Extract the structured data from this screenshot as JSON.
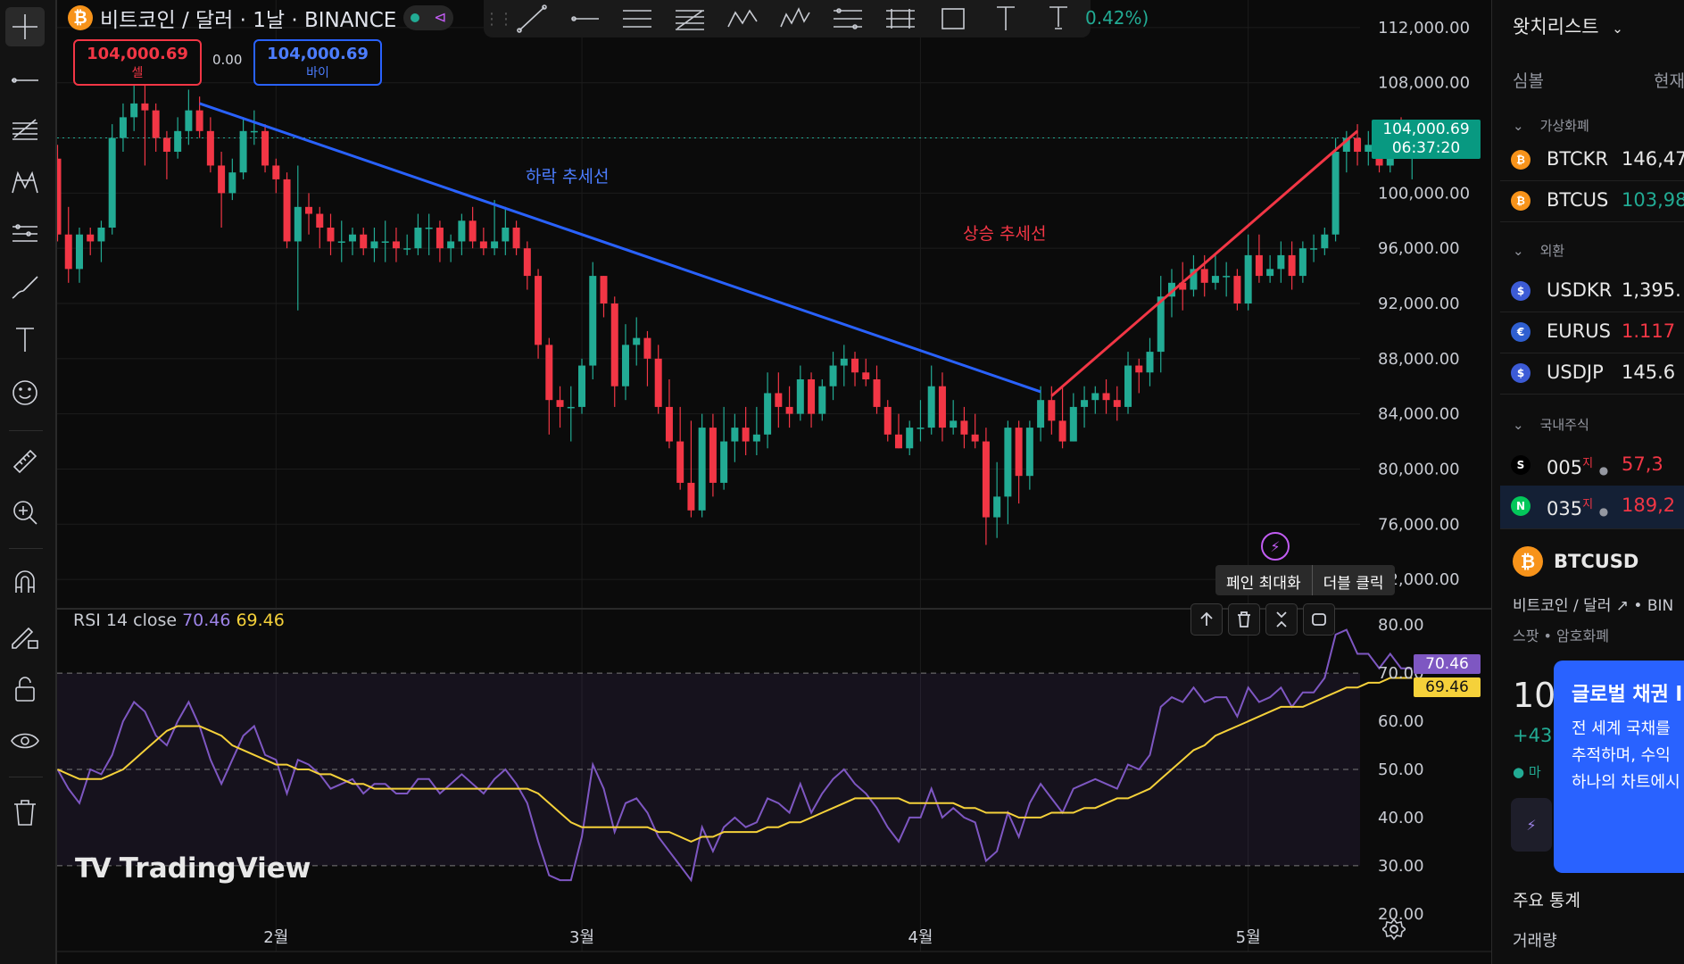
{
  "header": {
    "symbol_title": "비트코인 / 달러 · 1날 · BINANCE",
    "change_text": "0.42%)",
    "sell": {
      "price": "104,000.69",
      "label": "셀"
    },
    "buy": {
      "price": "104,000.69",
      "label": "바이"
    },
    "spread": "0.00"
  },
  "price_axis": {
    "labels": [
      "112,000.00",
      "108,000.00",
      "104,000.00",
      "100,000.00",
      "96,000.00",
      "92,000.00",
      "88,000.00",
      "84,000.00",
      "80,000.00",
      "76,000.00",
      "72,000.00"
    ],
    "last_price": "104,000.69",
    "countdown": "06:37:20"
  },
  "time_axis": [
    "2월",
    "3월",
    "4월",
    "5월"
  ],
  "annotations": {
    "downtrend": "하락 추세선",
    "uptrend": "상승 추세선"
  },
  "rsi": {
    "legend_label": "RSI 14 close",
    "rsi_value": "70.46",
    "ma_value": "69.46",
    "axis_labels": [
      "80.00",
      "70.00",
      "60.00",
      "50.00",
      "40.00",
      "30.00",
      "20.00"
    ]
  },
  "pane_tooltip": {
    "action": "페인 최대화",
    "hint": "더블 클릭"
  },
  "branding": {
    "logo_text": "TradingView"
  },
  "chart_data": {
    "type": "candlestick",
    "x": [
      "2025-01-12",
      "2025-01-13",
      "2025-01-14",
      "2025-01-15",
      "2025-01-16",
      "2025-01-17",
      "2025-01-18",
      "2025-01-19",
      "2025-01-20",
      "2025-01-21",
      "2025-01-22",
      "2025-01-23",
      "2025-01-24",
      "2025-01-25",
      "2025-01-26",
      "2025-01-27",
      "2025-01-28",
      "2025-01-29",
      "2025-01-30",
      "2025-01-31",
      "2025-02-01",
      "2025-02-02",
      "2025-02-03",
      "2025-02-04",
      "2025-02-05",
      "2025-02-06",
      "2025-02-07",
      "2025-02-08",
      "2025-02-09",
      "2025-02-10",
      "2025-02-11",
      "2025-02-12",
      "2025-02-13",
      "2025-02-14",
      "2025-02-15",
      "2025-02-16",
      "2025-02-17",
      "2025-02-18",
      "2025-02-19",
      "2025-02-20",
      "2025-02-21",
      "2025-02-22",
      "2025-02-23",
      "2025-02-24",
      "2025-02-25",
      "2025-02-26",
      "2025-02-27",
      "2025-02-28",
      "2025-03-01",
      "2025-03-02",
      "2025-03-03",
      "2025-03-04",
      "2025-03-05",
      "2025-03-06",
      "2025-03-07",
      "2025-03-08",
      "2025-03-09",
      "2025-03-10",
      "2025-03-11",
      "2025-03-12",
      "2025-03-13",
      "2025-03-14",
      "2025-03-15",
      "2025-03-16",
      "2025-03-17",
      "2025-03-18",
      "2025-03-19",
      "2025-03-20",
      "2025-03-21",
      "2025-03-22",
      "2025-03-23",
      "2025-03-24",
      "2025-03-25",
      "2025-03-26",
      "2025-03-27",
      "2025-03-28",
      "2025-03-29",
      "2025-03-30",
      "2025-03-31",
      "2025-04-01",
      "2025-04-02",
      "2025-04-03",
      "2025-04-04",
      "2025-04-05",
      "2025-04-06",
      "2025-04-07",
      "2025-04-08",
      "2025-04-09",
      "2025-04-10",
      "2025-04-11",
      "2025-04-12",
      "2025-04-13",
      "2025-04-14",
      "2025-04-15",
      "2025-04-16",
      "2025-04-17",
      "2025-04-18",
      "2025-04-19",
      "2025-04-20",
      "2025-04-21",
      "2025-04-22",
      "2025-04-23",
      "2025-04-24",
      "2025-04-25",
      "2025-04-26",
      "2025-04-27",
      "2025-04-28",
      "2025-04-29",
      "2025-04-30",
      "2025-05-01",
      "2025-05-02",
      "2025-05-03",
      "2025-05-04",
      "2025-05-05",
      "2025-05-06",
      "2025-05-07",
      "2025-05-08",
      "2025-05-09",
      "2025-05-10",
      "2025-05-11",
      "2025-05-12",
      "2025-05-13",
      "2025-05-14",
      "2025-05-15",
      "2025-05-16"
    ],
    "open": [
      102500,
      97000,
      94500,
      97000,
      96500,
      97500,
      104000,
      105500,
      106500,
      106000,
      104000,
      103000,
      104500,
      106000,
      104500,
      102000,
      100000,
      101500,
      104500,
      104500,
      102000,
      101000,
      96500,
      99000,
      98500,
      97500,
      96500,
      96500,
      97000,
      96000,
      96500,
      96500,
      96000,
      96000,
      97500,
      97500,
      96000,
      96500,
      98000,
      96500,
      96000,
      96500,
      97500,
      96000,
      94000,
      89000,
      85000,
      84500,
      84500,
      87500,
      94000,
      92000,
      86000,
      89000,
      89500,
      88000,
      84500,
      82000,
      79000,
      77000,
      83000,
      79000,
      82000,
      83000,
      82000,
      82500,
      85500,
      84500,
      84000,
      86500,
      84000,
      86000,
      87500,
      88000,
      87000,
      86500,
      84500,
      82500,
      81500,
      83000,
      83000,
      86000,
      83000,
      83500,
      82500,
      82000,
      76500,
      78000,
      83000,
      79500,
      83000,
      85000,
      83500,
      82000,
      84500,
      85000,
      85500,
      85000,
      84500,
      87500,
      87000,
      88500,
      92500,
      93500,
      93000,
      94500,
      93500,
      94000,
      94000,
      92000,
      95500,
      94000,
      94500,
      95500,
      94000,
      96000,
      96000,
      97000,
      103000,
      104000,
      103000,
      103500,
      102000,
      104000,
      103500
    ],
    "close": [
      97000,
      94500,
      97000,
      96500,
      97500,
      104000,
      105500,
      106500,
      106000,
      104000,
      103000,
      104500,
      106000,
      104500,
      102000,
      100000,
      101500,
      104500,
      104500,
      102000,
      101000,
      96500,
      99000,
      98500,
      97500,
      96500,
      96500,
      97000,
      96000,
      96500,
      96500,
      96000,
      96000,
      97500,
      97500,
      96000,
      96500,
      98000,
      96500,
      96000,
      96500,
      97500,
      96000,
      94000,
      89000,
      85000,
      84500,
      84500,
      87500,
      94000,
      92000,
      86000,
      89000,
      89500,
      88000,
      84500,
      82000,
      79000,
      77000,
      83000,
      79000,
      82000,
      83000,
      82000,
      82500,
      85500,
      84500,
      84000,
      86500,
      84000,
      86000,
      87500,
      88000,
      87000,
      86500,
      84500,
      82500,
      81500,
      83000,
      83000,
      86000,
      83000,
      83500,
      82500,
      82000,
      76500,
      78000,
      83000,
      79500,
      83000,
      85000,
      83500,
      82000,
      84500,
      85000,
      85500,
      85000,
      84500,
      87500,
      87000,
      88500,
      92500,
      93500,
      93000,
      94500,
      93500,
      94000,
      94000,
      92000,
      95500,
      94000,
      94500,
      95500,
      94000,
      96000,
      96000,
      97000,
      103000,
      104000,
      103000,
      103500,
      102000,
      104000,
      103500,
      104000
    ],
    "high": [
      103500,
      99000,
      97500,
      97500,
      98000,
      105000,
      106500,
      108500,
      109500,
      106500,
      104500,
      105500,
      107500,
      107000,
      105500,
      103000,
      102500,
      105500,
      106000,
      105000,
      102500,
      101500,
      102000,
      100000,
      99000,
      98500,
      98000,
      97500,
      97500,
      97500,
      98000,
      97500,
      97000,
      98500,
      98500,
      98000,
      97000,
      98500,
      99000,
      97500,
      99500,
      99000,
      98000,
      96500,
      94500,
      89500,
      86000,
      86000,
      88000,
      95000,
      94000,
      92500,
      90500,
      91000,
      90000,
      89000,
      86500,
      84500,
      83500,
      84000,
      84000,
      84500,
      84000,
      84500,
      84500,
      87000,
      87000,
      86000,
      87500,
      87000,
      86500,
      88500,
      89000,
      88500,
      88000,
      87500,
      85000,
      84000,
      83500,
      85000,
      87500,
      87000,
      85000,
      84500,
      84000,
      83000,
      80500,
      83500,
      83500,
      83500,
      86000,
      86000,
      86000,
      85500,
      86000,
      86000,
      86500,
      86000,
      88500,
      88000,
      89500,
      94000,
      94500,
      95000,
      95500,
      95500,
      95500,
      95000,
      94500,
      97000,
      97000,
      95500,
      96500,
      96500,
      96500,
      97000,
      97500,
      104000,
      104500,
      105000,
      104500,
      105000,
      104500,
      105500,
      104500
    ],
    "low": [
      96500,
      93500,
      93500,
      95500,
      95000,
      97000,
      103000,
      104500,
      102000,
      103000,
      101000,
      102500,
      103500,
      104000,
      101500,
      97500,
      99500,
      101000,
      103500,
      101500,
      100000,
      96000,
      91500,
      97000,
      96000,
      95500,
      95000,
      95500,
      95500,
      95000,
      95000,
      95000,
      95500,
      95500,
      95500,
      95000,
      95000,
      95500,
      96000,
      95500,
      95500,
      95500,
      95500,
      93000,
      88000,
      82500,
      83000,
      82000,
      84000,
      86500,
      91000,
      84500,
      85000,
      87500,
      86000,
      84000,
      81500,
      78500,
      76500,
      76500,
      78000,
      78500,
      80500,
      81000,
      81000,
      81500,
      83000,
      83000,
      83500,
      83000,
      83500,
      85000,
      86000,
      86000,
      86000,
      84000,
      82000,
      81500,
      81000,
      82000,
      82500,
      82000,
      82500,
      81500,
      81500,
      74500,
      75000,
      76000,
      77500,
      78500,
      82000,
      82500,
      81500,
      82000,
      83000,
      84000,
      84000,
      83500,
      84000,
      85500,
      86000,
      87000,
      91000,
      91500,
      92500,
      92500,
      93000,
      92500,
      91500,
      91500,
      93500,
      93500,
      93500,
      93000,
      93500,
      95000,
      95500,
      96500,
      101500,
      102000,
      102000,
      101500,
      101500,
      102500,
      101000
    ],
    "rsi": [
      50,
      46,
      43,
      50,
      49,
      53,
      60,
      64,
      62,
      57,
      55,
      60,
      64,
      59,
      52,
      47,
      52,
      57,
      59,
      53,
      52,
      45,
      52,
      51,
      49,
      46,
      47,
      48,
      45,
      47,
      47,
      45,
      45,
      48,
      48,
      45,
      47,
      49,
      47,
      45,
      48,
      50,
      47,
      43,
      35,
      28,
      27,
      27,
      36,
      51,
      46,
      37,
      43,
      44,
      41,
      36,
      33,
      30,
      27,
      38,
      33,
      38,
      40,
      38,
      39,
      44,
      43,
      41,
      47,
      41,
      45,
      48,
      50,
      47,
      45,
      42,
      38,
      35,
      40,
      40,
      46,
      40,
      42,
      40,
      39,
      31,
      33,
      41,
      36,
      43,
      47,
      44,
      41,
      46,
      47,
      48,
      47,
      46,
      51,
      50,
      53,
      63,
      65,
      64,
      67,
      64,
      65,
      65,
      61,
      67,
      64,
      65,
      67,
      63,
      66,
      66,
      69,
      78,
      79,
      74,
      74,
      71,
      74,
      71,
      71
    ],
    "rsi_ma": [
      50,
      49,
      48,
      48,
      48,
      49,
      50,
      52,
      54,
      56,
      58,
      59,
      59,
      59,
      58,
      57,
      55,
      54,
      53,
      52,
      51,
      51,
      50,
      50,
      49,
      49,
      48,
      47,
      47,
      46,
      46,
      46,
      46,
      46,
      46,
      46,
      46,
      46,
      46,
      46,
      46,
      46,
      46,
      46,
      45,
      43,
      41,
      39,
      38,
      38,
      38,
      38,
      38,
      38,
      38,
      37,
      37,
      36,
      35,
      36,
      36,
      37,
      37,
      37,
      37,
      38,
      38,
      39,
      39,
      40,
      41,
      42,
      43,
      44,
      44,
      44,
      44,
      44,
      43,
      43,
      43,
      43,
      43,
      42,
      42,
      41,
      41,
      41,
      40,
      40,
      40,
      41,
      41,
      41,
      42,
      42,
      43,
      44,
      44,
      45,
      46,
      48,
      50,
      52,
      54,
      55,
      57,
      58,
      59,
      60,
      61,
      62,
      63,
      63,
      63,
      64,
      65,
      66,
      67,
      67,
      68,
      68,
      69,
      69,
      69
    ],
    "downtrend_line": {
      "start": [
        "2025-01-25",
        106500
      ],
      "end": [
        "2025-04-12",
        85600
      ]
    },
    "uptrend_line": {
      "start": [
        "2025-04-13",
        85300
      ],
      "end": [
        "2025-05-11",
        104500
      ]
    },
    "y_range": [
      70000,
      114000
    ],
    "rsi_range": [
      17,
      83
    ],
    "rsi_bands": [
      70,
      50,
      30
    ],
    "colors": {
      "up": "#22ab94",
      "down": "#f23645",
      "rsi": "#7e57c2",
      "rsi_ma": "#f5d13a",
      "down_trend": "#2962ff",
      "up_trend": "#f23645"
    }
  },
  "watchlist": {
    "title": "왓치리스트",
    "col_symbol": "심볼",
    "col_price": "현재",
    "groups": [
      {
        "name": "가상화폐",
        "rows": [
          {
            "symbol": "BTCKR",
            "value": "146,47",
            "value_color": "#e8e8e8",
            "icon": "bitcoin-icon",
            "icon_color": "#f7931a",
            "icon_glyph": "₿"
          },
          {
            "symbol": "BTCUS",
            "value": "103,98",
            "value_color": "#22ab94",
            "icon": "bitcoin-icon",
            "icon_color": "#f7931a",
            "icon_glyph": "₿"
          }
        ]
      },
      {
        "name": "외환",
        "rows": [
          {
            "symbol": "USDKR",
            "value": "1,395.",
            "value_color": "#e8e8e8",
            "icon": "flag-icon",
            "icon_color": "#3c5bd6",
            "icon_glyph": "$"
          },
          {
            "symbol": "EURUS",
            "value": "1.117",
            "value_color": "#f23645",
            "icon": "flag-icon",
            "icon_color": "#2f5fd0",
            "icon_glyph": "€"
          },
          {
            "symbol": "USDJP",
            "value": "145.6",
            "value_color": "#e8e8e8",
            "icon": "flag-icon",
            "icon_color": "#3c5bd6",
            "icon_glyph": "$"
          }
        ]
      },
      {
        "name": "국내주식",
        "rows": [
          {
            "symbol": "005",
            "value": "57,3",
            "value_color": "#f23645",
            "icon": "samsung-icon",
            "icon_color": "#000000",
            "icon_glyph": "S"
          },
          {
            "symbol": "035",
            "value": "189,2",
            "value_color": "#f23645",
            "icon": "naver-icon",
            "icon_color": "#03c75a",
            "icon_glyph": "N"
          }
        ]
      }
    ],
    "suffix": "지"
  },
  "detail": {
    "symbol": "BTCUSD",
    "name": "비트코인 / 달러",
    "exchange": "BIN",
    "type_text": "스팟 • 암호화폐",
    "price": "10",
    "change": "+43",
    "market": "● 마",
    "stats_title": "주요 통계",
    "volume_label": "거래량"
  },
  "promo": {
    "title": "글로벌 채권 l",
    "lines": [
      "전 세계 국채를",
      "추적하며, 수익",
      "하나의 차트에시"
    ]
  }
}
